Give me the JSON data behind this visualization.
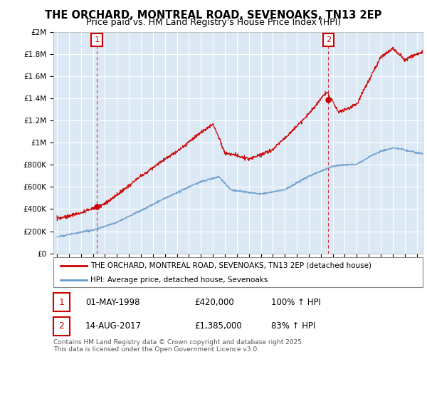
{
  "title": "THE ORCHARD, MONTREAL ROAD, SEVENOAKS, TN13 2EP",
  "subtitle": "Price paid vs. HM Land Registry's House Price Index (HPI)",
  "ylim": [
    0,
    2000000
  ],
  "yticks": [
    0,
    200000,
    400000,
    600000,
    800000,
    1000000,
    1200000,
    1400000,
    1600000,
    1800000,
    2000000
  ],
  "ytick_labels": [
    "£0",
    "£200K",
    "£400K",
    "£600K",
    "£800K",
    "£1M",
    "£1.2M",
    "£1.4M",
    "£1.6M",
    "£1.8M",
    "£2M"
  ],
  "xlim_start": 1994.7,
  "xlim_end": 2025.5,
  "background_color": "#ffffff",
  "plot_bg_color": "#dce9f5",
  "grid_color": "#ffffff",
  "red_line_color": "#cc0000",
  "blue_line_color": "#6699cc",
  "point1_year": 1998.33,
  "point1_value": 420000,
  "point2_year": 2017.62,
  "point2_value": 1385000,
  "vline_color": "#cc0000",
  "legend_label_red": "THE ORCHARD, MONTREAL ROAD, SEVENOAKS, TN13 2EP (detached house)",
  "legend_label_blue": "HPI: Average price, detached house, Sevenoaks",
  "table_row1": [
    "1",
    "01-MAY-1998",
    "£420,000",
    "100% ↑ HPI"
  ],
  "table_row2": [
    "2",
    "14-AUG-2017",
    "£1,385,000",
    "83% ↑ HPI"
  ],
  "footer": "Contains HM Land Registry data © Crown copyright and database right 2025.\nThis data is licensed under the Open Government Licence v3.0.",
  "title_fontsize": 10.5,
  "subtitle_fontsize": 9,
  "tick_fontsize": 7.5,
  "legend_fontsize": 8
}
